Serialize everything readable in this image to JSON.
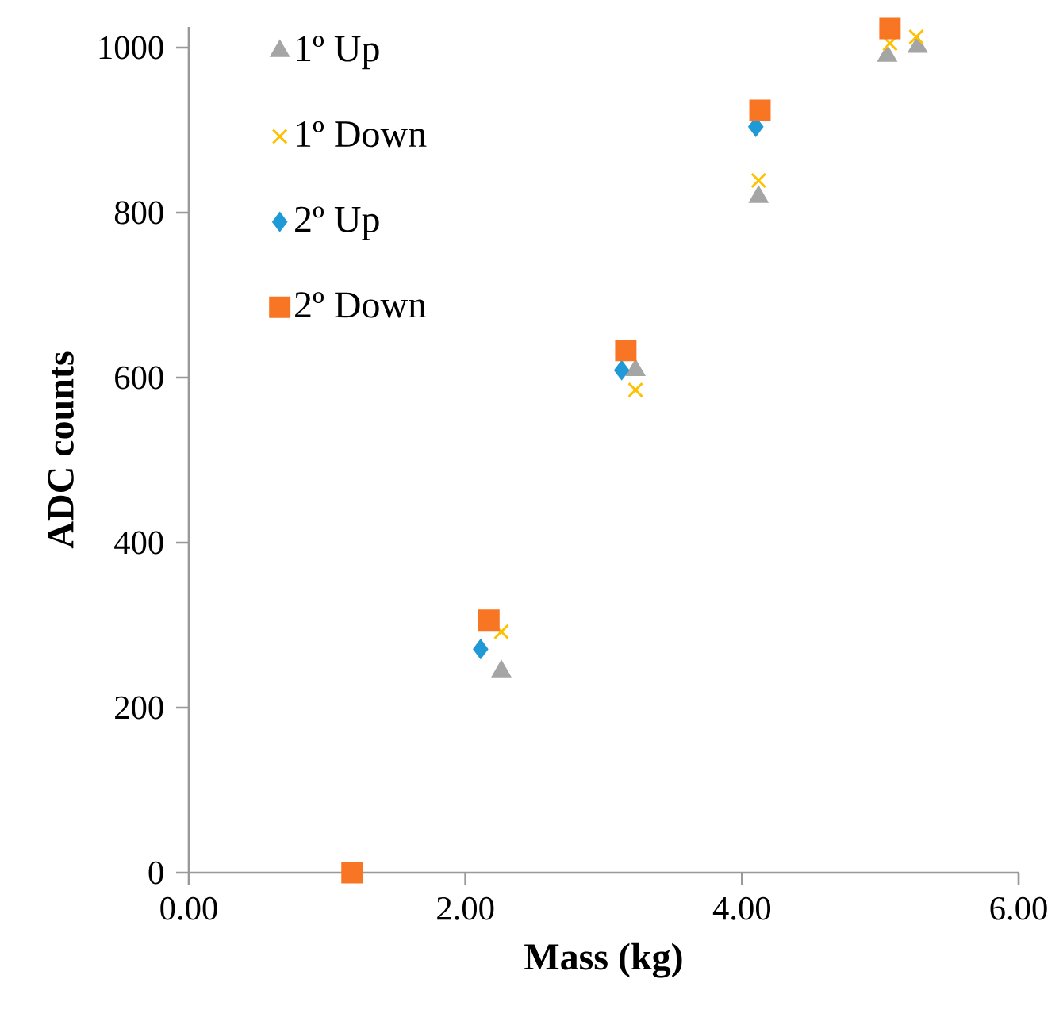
{
  "chart_data": {
    "type": "scatter",
    "xlabel": "Mass (kg)",
    "ylabel": "ADC counts",
    "xlim": [
      0,
      6
    ],
    "ylim": [
      0,
      1025
    ],
    "xticks": [
      {
        "value": 0,
        "label": "0.00"
      },
      {
        "value": 2,
        "label": "2.00"
      },
      {
        "value": 4,
        "label": "4.00"
      },
      {
        "value": 6,
        "label": "6.00"
      }
    ],
    "yticks": [
      0,
      200,
      400,
      600,
      800,
      1000
    ],
    "grid": false,
    "legend": "top left",
    "series": [
      {
        "name": "1º Up",
        "color": "#a5a5a5",
        "marker": "triangle",
        "x": [
          2.26,
          3.23,
          4.12,
          5.05,
          5.27
        ],
        "values": [
          244,
          609,
          819,
          990,
          1001
        ]
      },
      {
        "name": "1º Down",
        "color": "#ffc000",
        "marker": "cross",
        "x": [
          2.26,
          3.23,
          4.12,
          5.07,
          5.26
        ],
        "values": [
          292,
          585,
          839,
          1005,
          1013
        ]
      },
      {
        "name": "2º Up",
        "color": "#1f9ad6",
        "marker": "diamond",
        "x": [
          2.11,
          3.13,
          4.1
        ],
        "values": [
          271,
          609,
          904
        ]
      },
      {
        "name": "2º Down",
        "color": "#f87524",
        "marker": "square",
        "x": [
          1.18,
          2.17,
          3.16,
          4.13,
          5.07
        ],
        "values": [
          0,
          306,
          633,
          924,
          1023
        ]
      }
    ]
  }
}
